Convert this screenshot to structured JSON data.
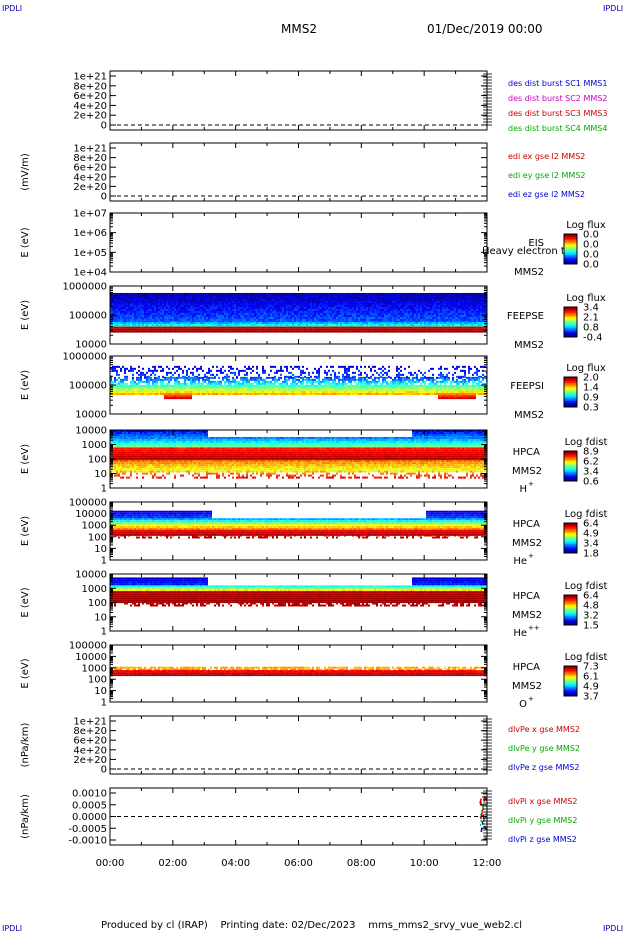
{
  "header": {
    "corner_tl": "IPDLI",
    "corner_tr": "IPDLI",
    "corner_bl": "IPDLI",
    "corner_br": "IPDLI",
    "mission": "MMS2",
    "datetime": "01/Dec/2019 00:00"
  },
  "footer": {
    "produced_by": "Produced by cl (IRAP)",
    "printing_date": "Printing date: 02/Dec/2023",
    "script": "mms_mms2_srvy_vue_web2.cl"
  },
  "time_axis": {
    "ticks": [
      "00:00",
      "02:00",
      "04:00",
      "06:00",
      "08:00",
      "10:00",
      "12:00"
    ],
    "range_hours": [
      0,
      12
    ]
  },
  "panels": [
    {
      "id": "p1",
      "type": "line",
      "ylabel": "",
      "yticks": [
        "1e+21",
        "8e+20",
        "6e+20",
        "4e+20",
        "2e+20",
        "0"
      ],
      "ytick_values": [
        1e+21,
        8e+20,
        6e+20,
        4e+20,
        2e+20,
        0
      ],
      "zero_line": true,
      "legend": [
        {
          "text": "des dist burst SC1 MMS1",
          "color": "#0000cc"
        },
        {
          "text": "des dist burst SC2 MMS2",
          "color": "#cc00cc"
        },
        {
          "text": "des dist burst SC3 MMS3",
          "color": "#cc0000"
        },
        {
          "text": "des dist burst SC4 MMS4",
          "color": "#00aa00"
        }
      ]
    },
    {
      "id": "p2",
      "type": "line",
      "ylabel": "(mV/m)",
      "yticks": [
        "1e+21",
        "8e+20",
        "6e+20",
        "4e+20",
        "2e+20",
        "0"
      ],
      "ytick_values": [
        1e+21,
        8e+20,
        6e+20,
        4e+20,
        2e+20,
        0
      ],
      "zero_line": true,
      "legend": [
        {
          "text": "edi ex gse l2 MMS2",
          "color": "#cc0000"
        },
        {
          "text": "edi ey gse l2 MMS2",
          "color": "#00aa00"
        },
        {
          "text": "edi ez gse l2 MMS2",
          "color": "#0000cc"
        }
      ]
    },
    {
      "id": "p3",
      "type": "spectrogram",
      "ylabel": "E (eV)",
      "yticks": [
        "1e+07",
        "1e+06",
        "1e+05",
        "1e+04"
      ],
      "ytick_values": [
        10000000,
        1000000,
        100000,
        10000
      ],
      "instrument": [
        "EIS",
        "MMS2"
      ],
      "overlay_label": "Heavy electron tof",
      "colorbar": {
        "title": "Log flux",
        "labels": [
          "0.0",
          "0.0",
          "0.0",
          "0.0"
        ]
      }
    },
    {
      "id": "p4",
      "type": "spectrogram",
      "ylabel": "E (eV)",
      "yticks": [
        "1000000",
        "100000",
        "10000"
      ],
      "ytick_values": [
        1000000,
        100000,
        10000
      ],
      "instrument": [
        "FEEPSE",
        "MMS2"
      ],
      "colorbar": {
        "title": "Log flux",
        "labels": [
          "3.4",
          "2.1",
          "0.8",
          "-0.4"
        ]
      }
    },
    {
      "id": "p5",
      "type": "spectrogram",
      "ylabel": "E (eV)",
      "yticks": [
        "1000000",
        "100000",
        "10000"
      ],
      "ytick_values": [
        1000000,
        100000,
        10000
      ],
      "instrument": [
        "FEEPSI",
        "MMS2"
      ],
      "colorbar": {
        "title": "Log flux",
        "labels": [
          "2.0",
          "1.4",
          "0.9",
          "0.3"
        ]
      }
    },
    {
      "id": "p6",
      "type": "spectrogram",
      "ylabel": "E (eV)",
      "yticks": [
        "10000",
        "1000",
        "100",
        "10",
        "1"
      ],
      "ytick_values": [
        10000,
        1000,
        100,
        10,
        1
      ],
      "instrument": [
        "HPCA",
        "MMS2",
        "H",
        "+"
      ],
      "colorbar": {
        "title": "Log fdist",
        "labels": [
          "8.9",
          "6.2",
          "3.4",
          "0.6"
        ]
      }
    },
    {
      "id": "p7",
      "type": "spectrogram",
      "ylabel": "E (eV)",
      "yticks": [
        "100000",
        "10000",
        "1000",
        "100",
        "10",
        "1"
      ],
      "ytick_values": [
        100000,
        10000,
        1000,
        100,
        10,
        1
      ],
      "instrument": [
        "HPCA",
        "MMS2",
        "He",
        "+"
      ],
      "colorbar": {
        "title": "Log fdist",
        "labels": [
          "6.4",
          "4.9",
          "3.4",
          "1.8"
        ]
      }
    },
    {
      "id": "p8",
      "type": "spectrogram",
      "ylabel": "E (eV)",
      "yticks": [
        "10000",
        "1000",
        "100",
        "10",
        "1"
      ],
      "ytick_values": [
        10000,
        1000,
        100,
        10,
        1
      ],
      "instrument": [
        "HPCA",
        "MMS2",
        "He",
        "++"
      ],
      "colorbar": {
        "title": "Log fdist",
        "labels": [
          "6.4",
          "4.8",
          "3.2",
          "1.5"
        ]
      }
    },
    {
      "id": "p9",
      "type": "spectrogram",
      "ylabel": "E (eV)",
      "yticks": [
        "100000",
        "10000",
        "1000",
        "100",
        "10",
        "1"
      ],
      "ytick_values": [
        100000,
        10000,
        1000,
        100,
        10,
        1
      ],
      "instrument": [
        "HPCA",
        "MMS2",
        "O",
        "+"
      ],
      "colorbar": {
        "title": "Log fdist",
        "labels": [
          "7.3",
          "6.1",
          "4.9",
          "3.7"
        ]
      }
    },
    {
      "id": "p10",
      "type": "line",
      "ylabel": "(nPa/km)",
      "yticks": [
        "1e+21",
        "8e+20",
        "6e+20",
        "4e+20",
        "2e+20",
        "0"
      ],
      "ytick_values": [
        1e+21,
        8e+20,
        6e+20,
        4e+20,
        2e+20,
        0
      ],
      "zero_line": true,
      "legend": [
        {
          "text": "dlvPe x gse MMS2",
          "color": "#cc0000"
        },
        {
          "text": "dlvPe y gse MMS2",
          "color": "#00aa00"
        },
        {
          "text": "dlvPe z gse MMS2",
          "color": "#0000cc"
        }
      ]
    },
    {
      "id": "p11",
      "type": "line",
      "ylabel": "(nPa/km)",
      "yticks": [
        "0.0010",
        "0.0005",
        "0.0000",
        "-0.0005",
        "-0.0010"
      ],
      "ytick_values": [
        0.001,
        0.0005,
        0,
        -0.0005,
        -0.001
      ],
      "zero_line": true,
      "legend": [
        {
          "text": "dlvPi x gse MMS2",
          "color": "#cc0000"
        },
        {
          "text": "dlvPi y gse MMS2",
          "color": "#00aa00"
        },
        {
          "text": "dlvPi z gse MMS2",
          "color": "#0000cc"
        }
      ]
    }
  ]
}
